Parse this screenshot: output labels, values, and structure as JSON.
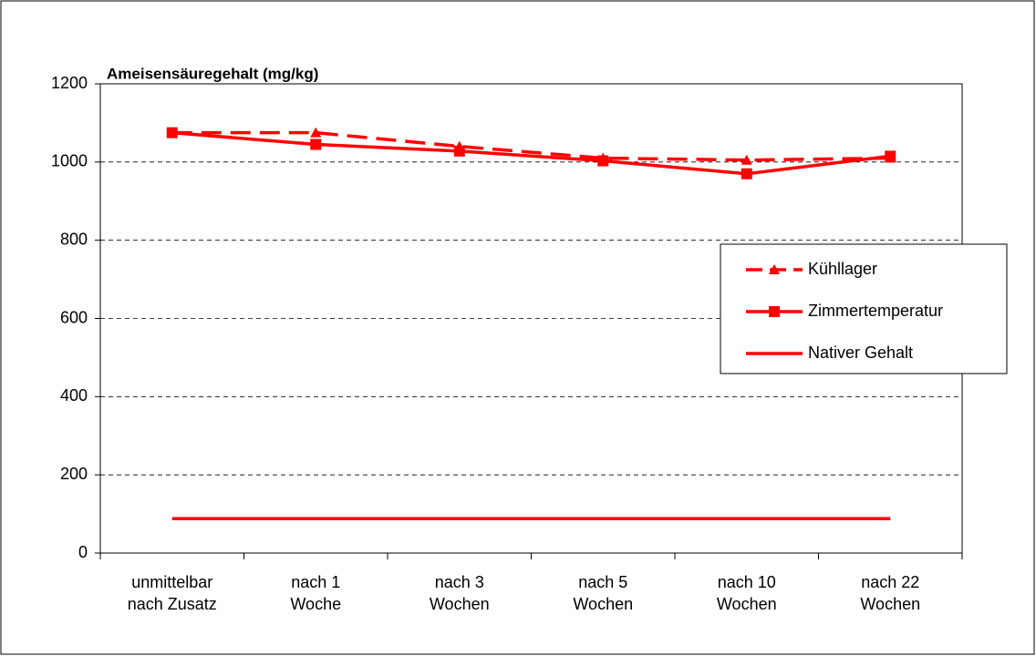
{
  "chart_data": {
    "type": "line",
    "title": "Ameisensäuregehalt (mg/kg)",
    "categories": [
      "unmittelbar\nnach Zusatz",
      "nach 1\nWoche",
      "nach 3\nWochen",
      "nach 5\nWochen",
      "nach 10\nWochen",
      "nach 22\nWochen"
    ],
    "series": [
      {
        "name": "Kühllager",
        "color": "#ff0000",
        "dash": true,
        "marker": "triangle",
        "values": [
          1075,
          1075,
          1040,
          1010,
          1005,
          1010
        ]
      },
      {
        "name": "Zimmertemperatur",
        "color": "#ff0000",
        "dash": false,
        "marker": "square",
        "values": [
          1075,
          1045,
          1028,
          1003,
          970,
          1015
        ]
      },
      {
        "name": "Nativer Gehalt",
        "color": "#ff0000",
        "dash": false,
        "marker": "none",
        "values": [
          88,
          88,
          88,
          88,
          88,
          88
        ]
      }
    ],
    "ylim": [
      0,
      1200
    ],
    "yticks": [
      0,
      200,
      400,
      600,
      800,
      1000,
      1200
    ],
    "grid": true,
    "legend": "right"
  }
}
